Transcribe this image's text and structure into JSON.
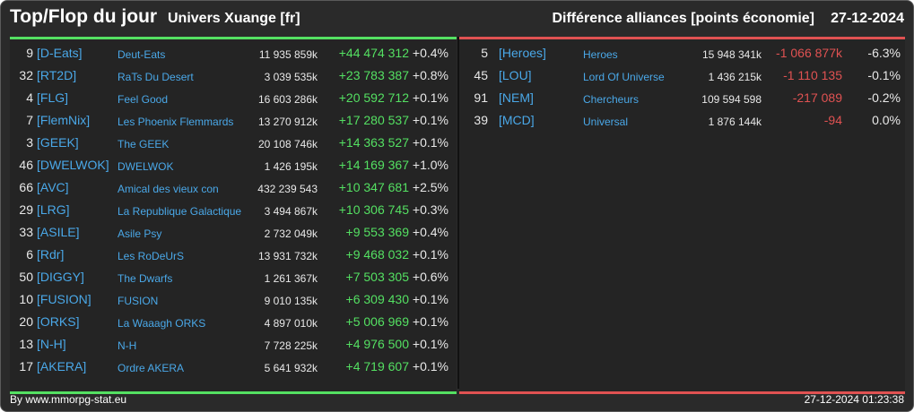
{
  "header": {
    "title": "Top/Flop du jour",
    "universe": "Univers Xuange [fr]",
    "subtitle": "Différence alliances [points économie]",
    "date": "27-12-2024"
  },
  "top": [
    {
      "rank": "9",
      "tag": "[D-Eats]",
      "name": "Deut-Eats",
      "points": "11 935 859k",
      "diff": "+44 474 312",
      "pct": "+0.4%"
    },
    {
      "rank": "32",
      "tag": "[RT2D]",
      "name": "RaTs Du Desert",
      "points": "3 039 535k",
      "diff": "+23 783 387",
      "pct": "+0.8%"
    },
    {
      "rank": "4",
      "tag": "[FLG]",
      "name": "Feel Good",
      "points": "16 603 286k",
      "diff": "+20 592 712",
      "pct": "+0.1%"
    },
    {
      "rank": "7",
      "tag": "[FlemNix]",
      "name": "Les Phoenix Flemmards",
      "points": "13 270 912k",
      "diff": "+17 280 537",
      "pct": "+0.1%"
    },
    {
      "rank": "3",
      "tag": "[GEEK]",
      "name": "The GEEK",
      "points": "20 108 746k",
      "diff": "+14 363 527",
      "pct": "+0.1%"
    },
    {
      "rank": "46",
      "tag": "[DWELWOK]",
      "name": "DWELWOK",
      "points": "1 426 195k",
      "diff": "+14 169 367",
      "pct": "+1.0%"
    },
    {
      "rank": "66",
      "tag": "[AVC]",
      "name": "Amical des vieux con",
      "points": "432 239 543",
      "diff": "+10 347 681",
      "pct": "+2.5%"
    },
    {
      "rank": "29",
      "tag": "[LRG]",
      "name": "La Republique Galactique",
      "points": "3 494 867k",
      "diff": "+10 306 745",
      "pct": "+0.3%"
    },
    {
      "rank": "33",
      "tag": "[ASILE]",
      "name": "Asile Psy",
      "points": "2 732 049k",
      "diff": "+9 553 369",
      "pct": "+0.4%"
    },
    {
      "rank": "6",
      "tag": "[Rdr]",
      "name": "Les RoDeUrS",
      "points": "13 931 732k",
      "diff": "+9 468 032",
      "pct": "+0.1%"
    },
    {
      "rank": "50",
      "tag": "[DIGGY]",
      "name": "The Dwarfs",
      "points": "1 261 367k",
      "diff": "+7 503 305",
      "pct": "+0.6%"
    },
    {
      "rank": "10",
      "tag": "[FUSION]",
      "name": "FUSION",
      "points": "9 010 135k",
      "diff": "+6 309 430",
      "pct": "+0.1%"
    },
    {
      "rank": "20",
      "tag": "[ORKS]",
      "name": "La Waaagh ORKS",
      "points": "4 897 010k",
      "diff": "+5 006 969",
      "pct": "+0.1%"
    },
    {
      "rank": "13",
      "tag": "[N-H]",
      "name": "N-H",
      "points": "7 728 225k",
      "diff": "+4 976 500",
      "pct": "+0.1%"
    },
    {
      "rank": "17",
      "tag": "[AKERA]",
      "name": "Ordre AKERA",
      "points": "5 641 932k",
      "diff": "+4 719 607",
      "pct": "+0.1%"
    }
  ],
  "flop": [
    {
      "rank": "5",
      "tag": "[Heroes]",
      "name": "Heroes",
      "points": "15 948 341k",
      "diff": "-1 066 877k",
      "pct": "-6.3%"
    },
    {
      "rank": "45",
      "tag": "[LOU]",
      "name": "Lord Of Universe",
      "points": "1 436 215k",
      "diff": "-1 110 135",
      "pct": "-0.1%"
    },
    {
      "rank": "91",
      "tag": "[NEM]",
      "name": "Chercheurs",
      "points": "109 594 598",
      "diff": "-217 089",
      "pct": "-0.2%"
    },
    {
      "rank": "39",
      "tag": "[MCD]",
      "name": "Universal",
      "points": "1 876 144k",
      "diff": "-94",
      "pct": "0.0%"
    }
  ],
  "footer": {
    "credit": "By www.mmorpg-stat.eu",
    "timestamp": "27-12-2024 01:23:38"
  },
  "colors": {
    "positive": "#54e062",
    "negative": "#e05252",
    "link": "#4aa8e8",
    "background": "#2a2a2a"
  }
}
